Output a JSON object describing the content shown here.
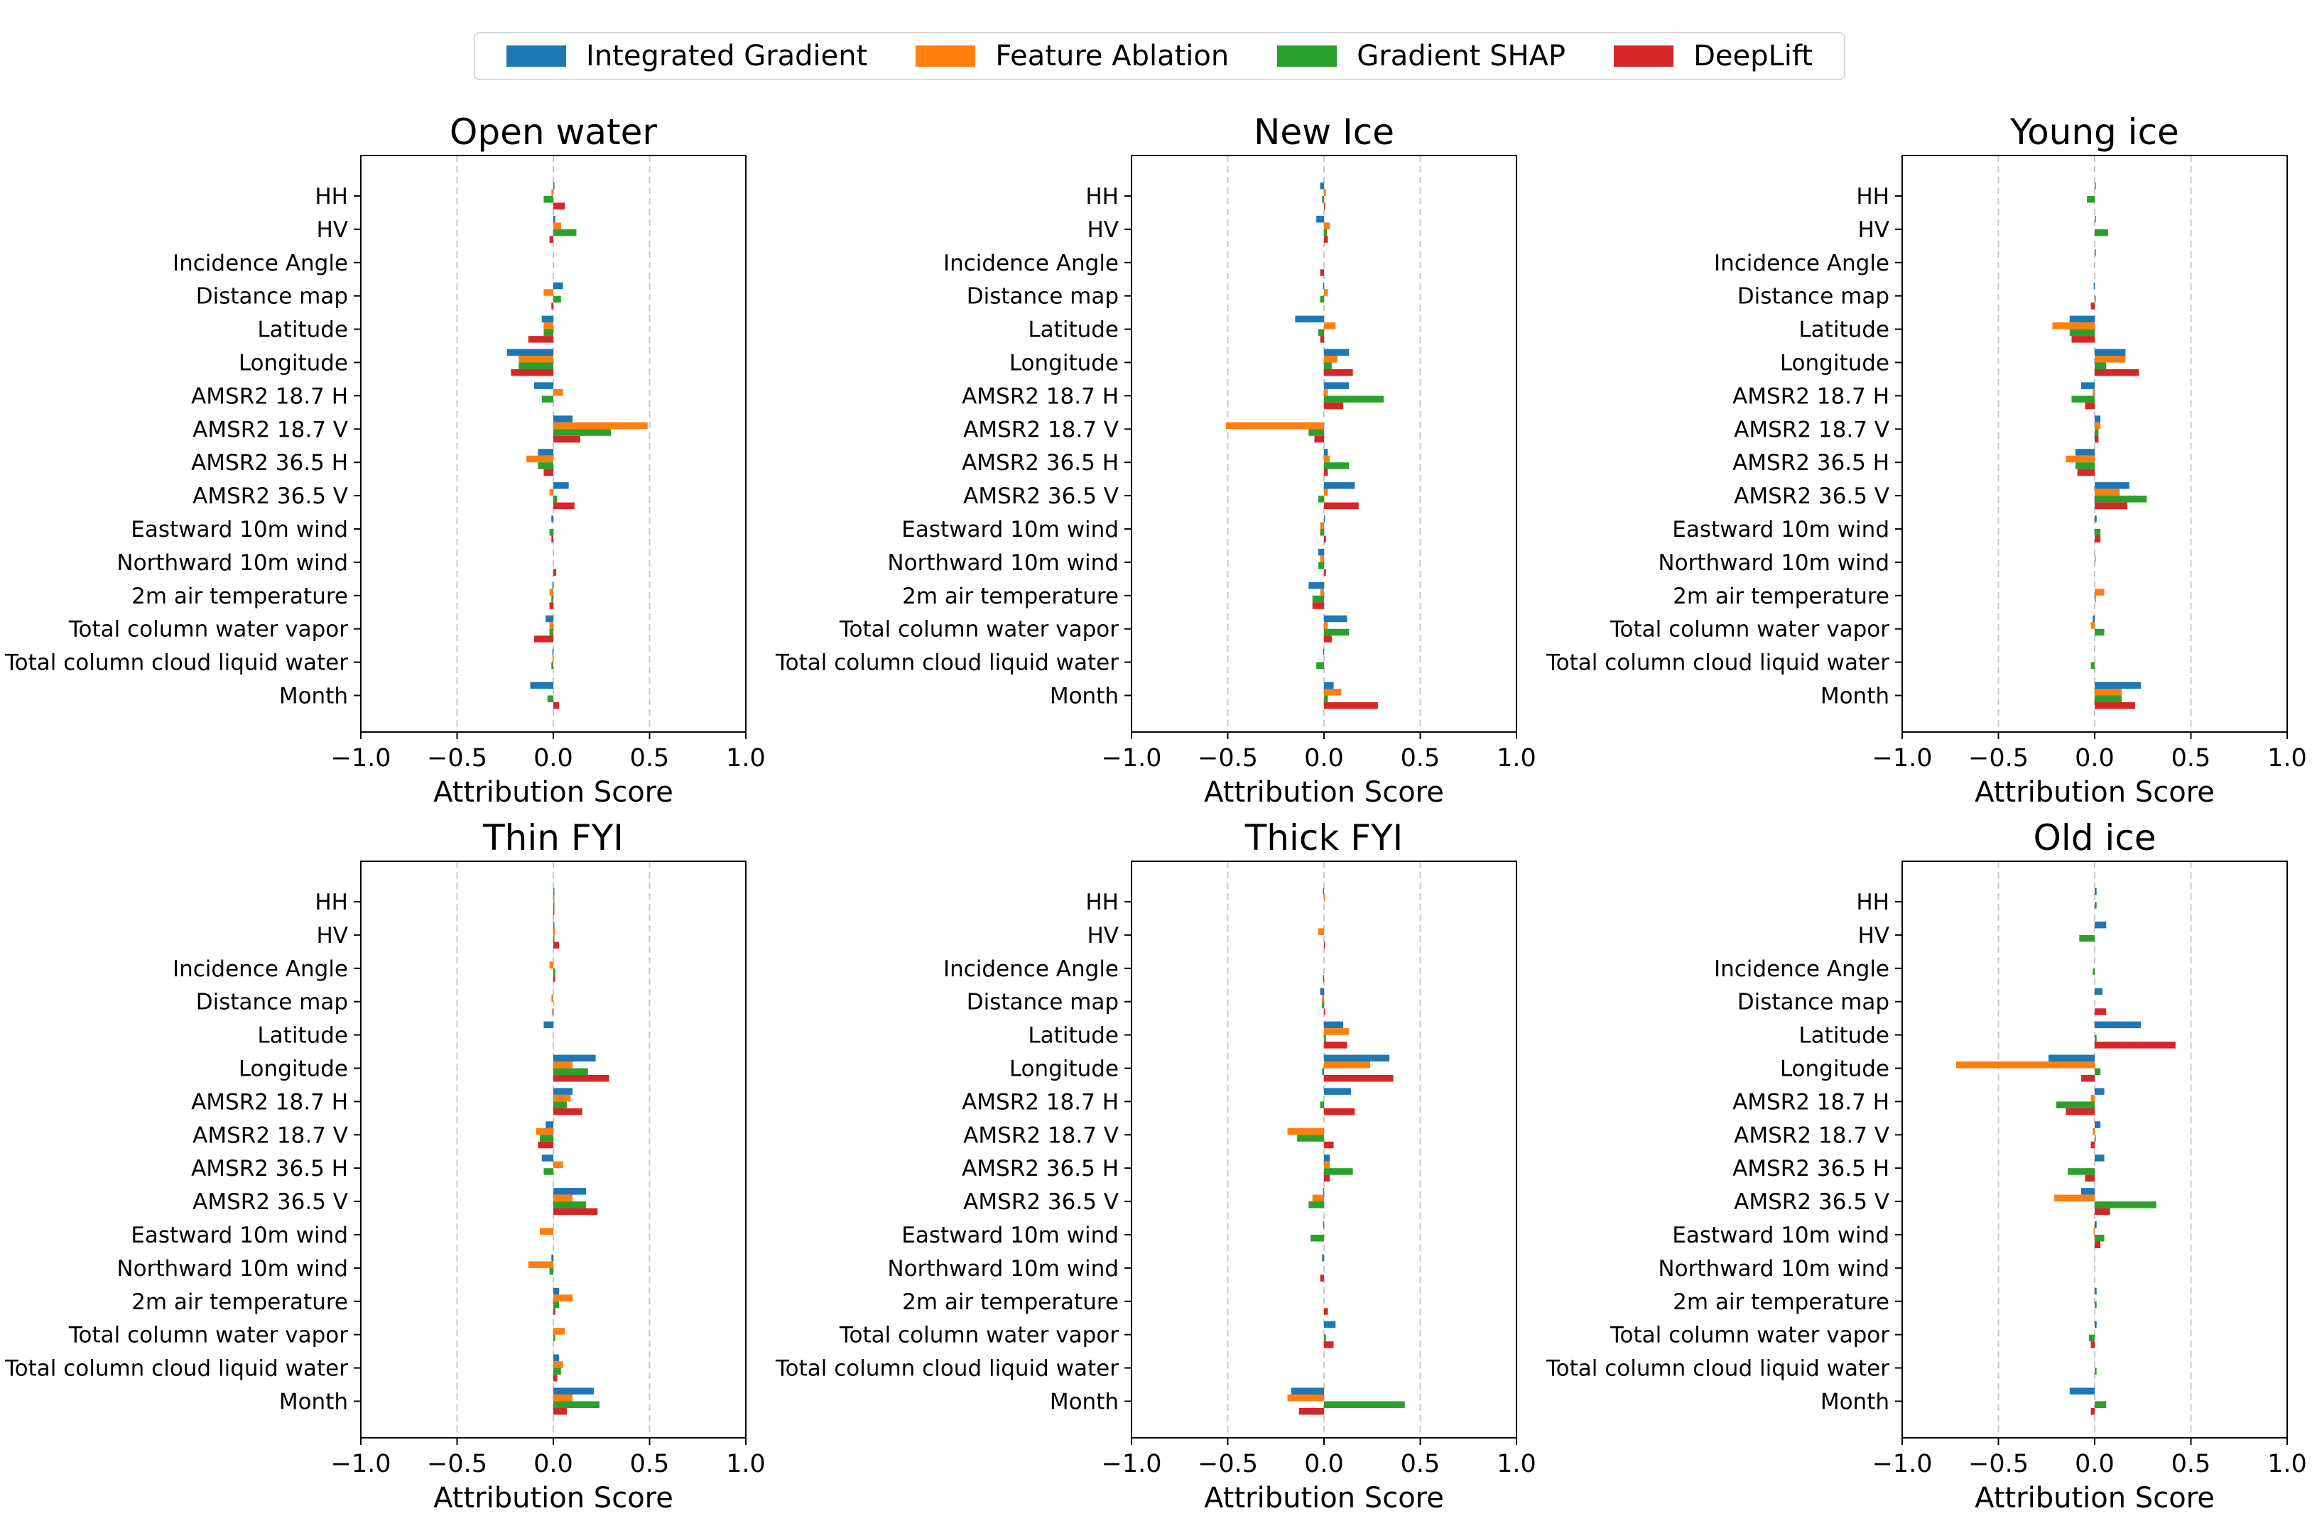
{
  "legend": [
    {
      "name": "Integrated Gradient",
      "color": "#1f77b4"
    },
    {
      "name": "Feature Ablation",
      "color": "#ff7f0e"
    },
    {
      "name": "Gradient SHAP",
      "color": "#2ca02c"
    },
    {
      "name": "DeepLift",
      "color": "#d62728"
    }
  ],
  "chart_data": [
    {
      "type": "bar",
      "orientation": "horizontal",
      "title": "Open water",
      "xlabel": "Attribution Score",
      "xlim": [
        -1.0,
        1.0
      ],
      "xticks": [
        "−1.0",
        "−0.5",
        "0.0",
        "0.5",
        "1.0"
      ],
      "categories": [
        "HH",
        "HV",
        "Incidence Angle",
        "Distance map",
        "Latitude",
        "Longitude",
        "AMSR2 18.7 H",
        "AMSR2 18.7 V",
        "AMSR2 36.5 H",
        "AMSR2 36.5 V",
        "Eastward 10m wind",
        "Northward 10m wind",
        "2m air temperature",
        "Total column water vapor",
        "Total column cloud liquid water",
        "Month"
      ],
      "series": [
        {
          "name": "Integrated Gradient",
          "values": [
            0.005,
            0.01,
            0,
            0.05,
            -0.06,
            -0.24,
            -0.1,
            0.1,
            -0.08,
            0.08,
            -0.01,
            0,
            -0.005,
            -0.04,
            -0.005,
            -0.12
          ]
        },
        {
          "name": "Feature Ablation",
          "values": [
            -0.01,
            0.04,
            0,
            -0.05,
            -0.05,
            -0.18,
            0.05,
            0.49,
            -0.14,
            -0.02,
            0,
            0,
            -0.02,
            -0.02,
            -0.005,
            0
          ]
        },
        {
          "name": "Gradient SHAP",
          "values": [
            -0.05,
            0.12,
            0,
            0.04,
            -0.05,
            -0.18,
            -0.06,
            0.3,
            -0.08,
            0.02,
            -0.02,
            0,
            -0.01,
            -0.02,
            -0.01,
            -0.03
          ]
        },
        {
          "name": "DeepLift",
          "values": [
            0.06,
            -0.02,
            0,
            -0.01,
            -0.13,
            -0.22,
            0,
            0.14,
            -0.05,
            0.11,
            -0.01,
            0.015,
            -0.02,
            -0.1,
            0,
            0.03
          ]
        }
      ]
    },
    {
      "type": "bar",
      "orientation": "horizontal",
      "title": "New Ice",
      "xlabel": "Attribution Score",
      "xlim": [
        -1.0,
        1.0
      ],
      "xticks": [
        "−1.0",
        "−0.5",
        "0.0",
        "0.5",
        "1.0"
      ],
      "categories": [
        "HH",
        "HV",
        "Incidence Angle",
        "Distance map",
        "Latitude",
        "Longitude",
        "AMSR2 18.7 H",
        "AMSR2 18.7 V",
        "AMSR2 36.5 H",
        "AMSR2 36.5 V",
        "Eastward 10m wind",
        "Northward 10m wind",
        "2m air temperature",
        "Total column water vapor",
        "Total column cloud liquid water",
        "Month"
      ],
      "series": [
        {
          "name": "Integrated Gradient",
          "values": [
            -0.02,
            -0.04,
            0,
            -0.005,
            -0.15,
            0.13,
            0.13,
            0,
            0.02,
            0.16,
            0.005,
            -0.03,
            -0.08,
            0.12,
            -0.005,
            0.05
          ]
        },
        {
          "name": "Feature Ablation",
          "values": [
            0.01,
            0.03,
            0,
            0.02,
            0.06,
            0.07,
            0.02,
            -0.51,
            0.03,
            0.02,
            -0.02,
            -0.02,
            -0.02,
            0.02,
            0,
            0.09
          ]
        },
        {
          "name": "Gradient SHAP",
          "values": [
            -0.01,
            0.015,
            0,
            -0.02,
            -0.03,
            0.04,
            0.31,
            -0.08,
            0.13,
            -0.03,
            -0.02,
            -0.03,
            -0.06,
            0.13,
            -0.04,
            0.02
          ]
        },
        {
          "name": "DeepLift",
          "values": [
            0.005,
            0.02,
            -0.02,
            0,
            -0.02,
            0.15,
            0.1,
            -0.05,
            0.02,
            0.18,
            0.01,
            0.01,
            -0.06,
            0.04,
            0,
            0.28
          ]
        }
      ]
    },
    {
      "type": "bar",
      "orientation": "horizontal",
      "title": "Young ice",
      "xlabel": "Attribution Score",
      "xlim": [
        -1.0,
        1.0
      ],
      "xticks": [
        "−1.0",
        "−0.5",
        "0.0",
        "0.5",
        "1.0"
      ],
      "categories": [
        "HH",
        "HV",
        "Incidence Angle",
        "Distance map",
        "Latitude",
        "Longitude",
        "AMSR2 18.7 H",
        "AMSR2 18.7 V",
        "AMSR2 36.5 H",
        "AMSR2 36.5 V",
        "Eastward 10m wind",
        "Northward 10m wind",
        "2m air temperature",
        "Total column water vapor",
        "Total column cloud liquid water",
        "Month"
      ],
      "series": [
        {
          "name": "Integrated Gradient",
          "values": [
            0.005,
            0.005,
            0.005,
            -0.005,
            -0.13,
            0.16,
            -0.07,
            0.03,
            -0.1,
            0.18,
            0.01,
            0,
            0,
            -0.01,
            0,
            0.24
          ]
        },
        {
          "name": "Feature Ablation",
          "values": [
            0,
            0,
            0,
            0,
            -0.22,
            0.16,
            -0.01,
            0.03,
            -0.15,
            0.13,
            0,
            0.005,
            0.05,
            -0.02,
            0,
            0.14
          ]
        },
        {
          "name": "Gradient SHAP",
          "values": [
            -0.04,
            0.07,
            0,
            0.005,
            -0.13,
            0.06,
            -0.12,
            0.02,
            -0.1,
            0.27,
            0.03,
            0,
            0.005,
            0.05,
            -0.02,
            0.14
          ]
        },
        {
          "name": "DeepLift",
          "values": [
            0,
            0,
            0,
            -0.02,
            -0.12,
            0.23,
            -0.05,
            0.02,
            -0.09,
            0.17,
            0.03,
            0,
            0,
            0,
            0,
            0.21
          ]
        }
      ]
    },
    {
      "type": "bar",
      "orientation": "horizontal",
      "title": "Thin FYI",
      "xlabel": "Attribution Score",
      "xlim": [
        -1.0,
        1.0
      ],
      "xticks": [
        "−1.0",
        "−0.5",
        "0.0",
        "0.5",
        "1.0"
      ],
      "categories": [
        "HH",
        "HV",
        "Incidence Angle",
        "Distance map",
        "Latitude",
        "Longitude",
        "AMSR2 18.7 H",
        "AMSR2 18.7 V",
        "AMSR2 36.5 H",
        "AMSR2 36.5 V",
        "Eastward 10m wind",
        "Northward 10m wind",
        "2m air temperature",
        "Total column water vapor",
        "Total column cloud liquid water",
        "Month"
      ],
      "series": [
        {
          "name": "Integrated Gradient",
          "values": [
            0.005,
            0.005,
            0,
            0,
            -0.05,
            0.22,
            0.1,
            -0.04,
            -0.06,
            0.17,
            0,
            -0.01,
            0.03,
            0,
            0.03,
            0.21
          ]
        },
        {
          "name": "Feature Ablation",
          "values": [
            0.005,
            0.01,
            -0.02,
            -0.01,
            0,
            0.1,
            0.09,
            -0.09,
            0.05,
            0.1,
            -0.07,
            -0.13,
            0.1,
            0.06,
            0.05,
            0.1
          ]
        },
        {
          "name": "Gradient SHAP",
          "values": [
            0.005,
            0.005,
            0.01,
            0,
            0,
            0.18,
            0.07,
            -0.07,
            -0.05,
            0.17,
            0,
            -0.02,
            0.03,
            0.01,
            0.04,
            0.24
          ]
        },
        {
          "name": "DeepLift",
          "values": [
            0.005,
            0.03,
            0.01,
            -0.005,
            0,
            0.29,
            0.15,
            -0.08,
            0,
            0.23,
            0,
            0,
            0.01,
            0,
            0.02,
            0.07
          ]
        }
      ]
    },
    {
      "type": "bar",
      "orientation": "horizontal",
      "title": "Thick FYI",
      "xlabel": "Attribution Score",
      "xlim": [
        -1.0,
        1.0
      ],
      "xticks": [
        "−1.0",
        "−0.5",
        "0.0",
        "0.5",
        "1.0"
      ],
      "categories": [
        "HH",
        "HV",
        "Incidence Angle",
        "Distance map",
        "Latitude",
        "Longitude",
        "AMSR2 18.7 H",
        "AMSR2 18.7 V",
        "AMSR2 36.5 H",
        "AMSR2 36.5 V",
        "Eastward 10m wind",
        "Northward 10m wind",
        "2m air temperature",
        "Total column water vapor",
        "Total column cloud liquid water",
        "Month"
      ],
      "series": [
        {
          "name": "Integrated Gradient",
          "values": [
            -0.005,
            0,
            0,
            -0.02,
            0.1,
            0.34,
            0.14,
            0,
            0.03,
            -0.005,
            -0.005,
            -0.01,
            0,
            0.06,
            0,
            -0.17
          ]
        },
        {
          "name": "Feature Ablation",
          "values": [
            0.005,
            -0.03,
            0,
            -0.01,
            0.13,
            0.24,
            0,
            -0.19,
            0.03,
            -0.06,
            0,
            0,
            0,
            0,
            0,
            -0.19
          ]
        },
        {
          "name": "Gradient SHAP",
          "values": [
            0,
            0,
            0,
            -0.01,
            0.01,
            -0.01,
            -0.02,
            -0.14,
            0.15,
            -0.08,
            -0.07,
            0,
            0,
            0.01,
            0,
            0.42
          ]
        },
        {
          "name": "DeepLift",
          "values": [
            0,
            0.005,
            -0.005,
            0.005,
            0.12,
            0.36,
            0.16,
            0.05,
            0.03,
            0,
            0,
            -0.02,
            0.02,
            0.05,
            0,
            -0.13
          ]
        }
      ]
    },
    {
      "type": "bar",
      "orientation": "horizontal",
      "title": "Old ice",
      "xlabel": "Attribution Score",
      "xlim": [
        -1.0,
        1.0
      ],
      "xticks": [
        "−1.0",
        "−0.5",
        "0.0",
        "0.5",
        "1.0"
      ],
      "categories": [
        "HH",
        "HV",
        "Incidence Angle",
        "Distance map",
        "Latitude",
        "Longitude",
        "AMSR2 18.7 H",
        "AMSR2 18.7 V",
        "AMSR2 36.5 H",
        "AMSR2 36.5 V",
        "Eastward 10m wind",
        "Northward 10m wind",
        "2m air temperature",
        "Total column water vapor",
        "Total column cloud liquid water",
        "Month"
      ],
      "series": [
        {
          "name": "Integrated Gradient",
          "values": [
            0.01,
            0.06,
            0,
            0.04,
            0.24,
            -0.24,
            0.05,
            0.03,
            0.05,
            -0.07,
            0.01,
            0,
            0.01,
            0.01,
            0,
            -0.13
          ]
        },
        {
          "name": "Feature Ablation",
          "values": [
            0,
            0,
            0,
            0,
            0,
            -0.72,
            -0.02,
            -0.01,
            0,
            -0.21,
            -0.005,
            0,
            0,
            0,
            0,
            0
          ]
        },
        {
          "name": "Gradient SHAP",
          "values": [
            0.01,
            -0.08,
            -0.01,
            0,
            0.01,
            0.03,
            -0.2,
            0.005,
            -0.14,
            0.32,
            0.05,
            0,
            0.01,
            -0.03,
            0.01,
            0.06
          ]
        },
        {
          "name": "DeepLift",
          "values": [
            0,
            0,
            0,
            0.06,
            0.42,
            -0.07,
            -0.15,
            -0.02,
            -0.05,
            0.08,
            0.03,
            0,
            0,
            -0.02,
            0,
            -0.02
          ]
        }
      ]
    }
  ]
}
